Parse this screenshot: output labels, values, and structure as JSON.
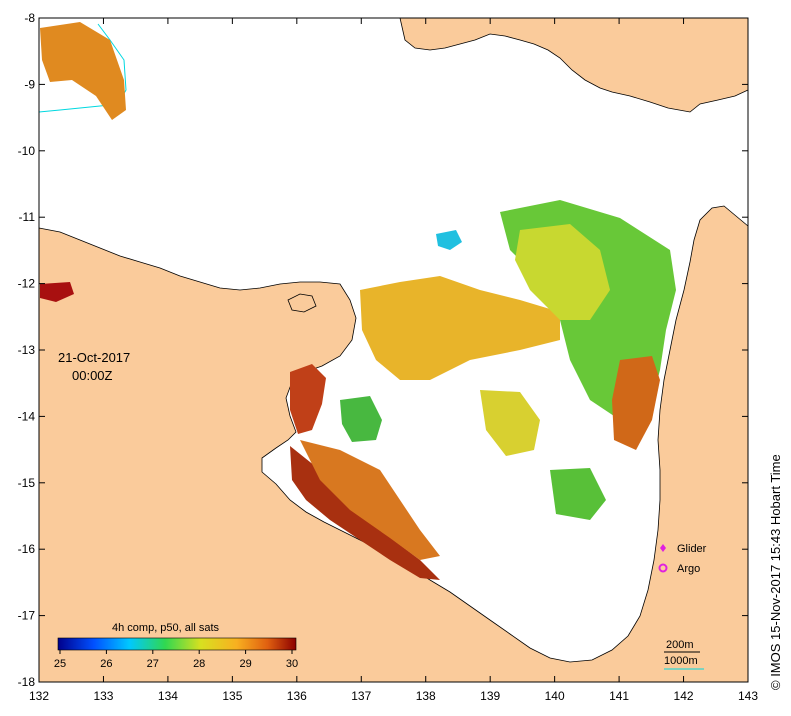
{
  "map": {
    "date": "21-Oct-2017",
    "time": "00:00Z",
    "credit": "© IMOS 15-Nov-2017 15:43 Hobart Time",
    "x_ticks": [
      "132",
      "133",
      "134",
      "135",
      "136",
      "137",
      "138",
      "139",
      "140",
      "141",
      "142",
      "143"
    ],
    "y_ticks": [
      "-8",
      "-9",
      "-10",
      "-11",
      "-12",
      "-13",
      "-14",
      "-15",
      "-16",
      "-17",
      "-18"
    ],
    "lon_range": [
      132,
      143
    ],
    "lat_range": [
      -18,
      -8
    ]
  },
  "legend": {
    "title": "4h comp, p50, all sats",
    "ticks": [
      "25",
      "26",
      "27",
      "28",
      "29",
      "30"
    ],
    "markers": [
      {
        "label": "Glider",
        "color": "#e020e0",
        "icon": "diamond-icon"
      },
      {
        "label": "Argo",
        "color": "#e020e0",
        "icon": "ring-icon"
      }
    ]
  },
  "bathymetry": {
    "contours": [
      {
        "label": "200m",
        "color": "#000000"
      },
      {
        "label": "1000m",
        "color": "#00d8e0"
      }
    ]
  },
  "colors": {
    "land": "#facb9b",
    "sea": "#ffffff",
    "colormap": [
      "#00008c",
      "#0050ff",
      "#00c8ff",
      "#30d850",
      "#d8e020",
      "#f8b020",
      "#e06010",
      "#8c0000"
    ]
  }
}
